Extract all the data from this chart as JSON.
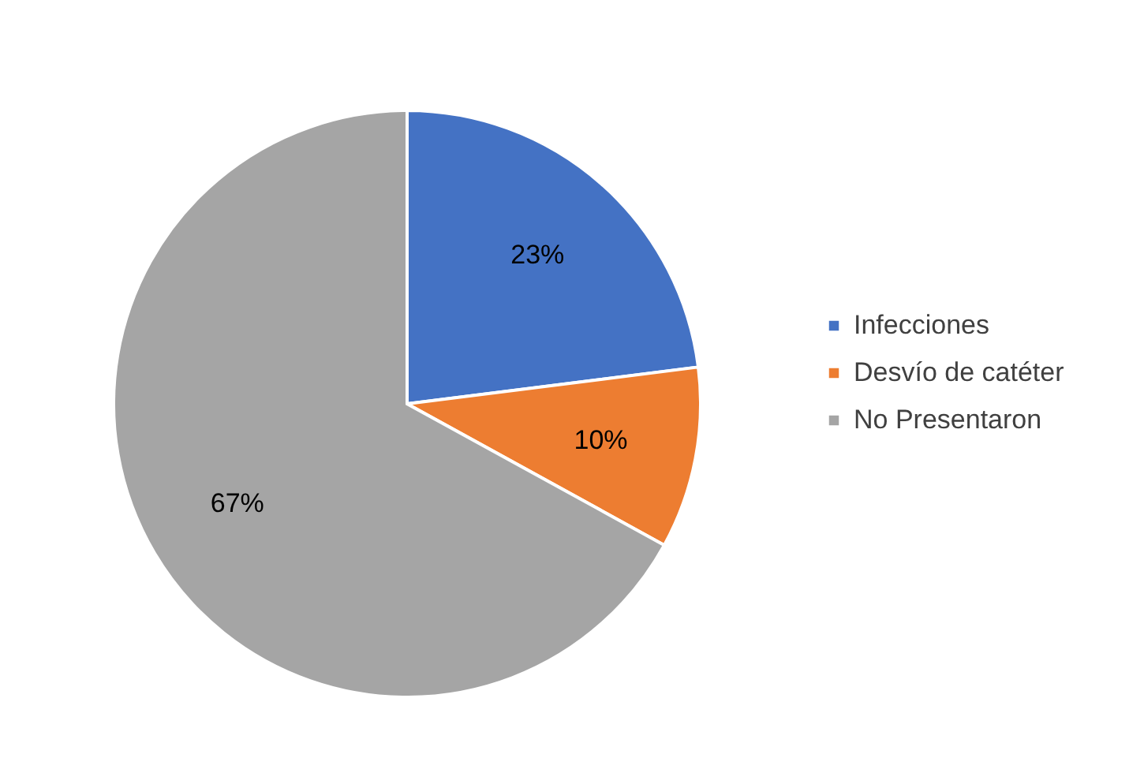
{
  "chart_data": {
    "type": "pie",
    "categories": [
      "Infecciones",
      "Desvío de catéter",
      "No Presentaron"
    ],
    "values": [
      23,
      10,
      67
    ],
    "colors": [
      "#4472c4",
      "#ed7d31",
      "#a5a5a5"
    ],
    "value_labels": [
      "23%",
      "10%",
      "67%"
    ],
    "legend": "right"
  }
}
